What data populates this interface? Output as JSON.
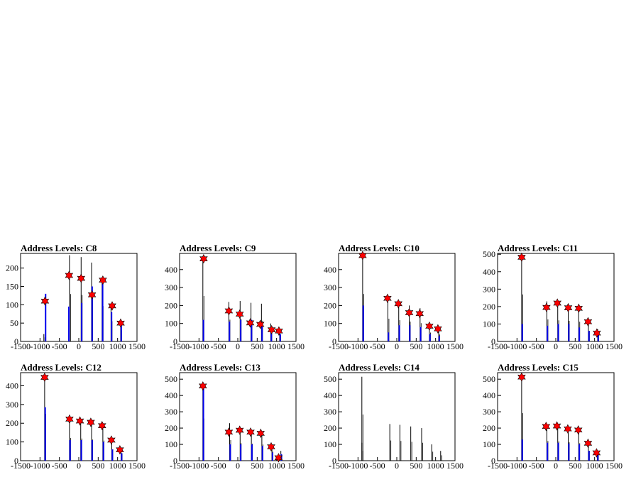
{
  "chart_data": [
    {
      "type": "histogram",
      "title": "Address Levels: C8",
      "xlim": [
        -1500,
        1500
      ],
      "ylim": [
        0,
        240
      ],
      "yticks": [
        0,
        50,
        100,
        150,
        200
      ],
      "xticks": [
        -1500,
        -1000,
        -500,
        0,
        500,
        1000,
        1500
      ],
      "black_spikes": [
        [
          -900,
          20
        ],
        [
          -240,
          235
        ],
        [
          60,
          230
        ],
        [
          330,
          215
        ],
        [
          600,
          175
        ],
        [
          830,
          100
        ],
        [
          1080,
          55
        ]
      ],
      "blue_spikes": [
        [
          -870,
          130
        ],
        [
          -270,
          95
        ],
        [
          60,
          105
        ],
        [
          330,
          150
        ],
        [
          600,
          170
        ],
        [
          830,
          80
        ],
        [
          1080,
          45
        ]
      ],
      "markers": [
        [
          -870,
          110
        ],
        [
          -250,
          180
        ],
        [
          60,
          172
        ],
        [
          340,
          127
        ],
        [
          620,
          167
        ],
        [
          860,
          97
        ],
        [
          1080,
          50
        ]
      ]
    },
    {
      "type": "histogram",
      "title": "Address Levels: C9",
      "xlim": [
        -1500,
        1500
      ],
      "ylim": [
        0,
        490
      ],
      "yticks": [
        0,
        100,
        200,
        300,
        400
      ],
      "xticks": [
        -1500,
        -1000,
        -500,
        0,
        500,
        1000,
        1500
      ],
      "black_spikes": [
        [
          -900,
          460
        ],
        [
          -230,
          220
        ],
        [
          60,
          225
        ],
        [
          340,
          215
        ],
        [
          610,
          210
        ],
        [
          850,
          100
        ],
        [
          1080,
          60
        ]
      ],
      "blue_spikes": [
        [
          -900,
          120
        ],
        [
          -230,
          110
        ],
        [
          60,
          120
        ],
        [
          340,
          120
        ],
        [
          610,
          100
        ],
        [
          850,
          50
        ],
        [
          1080,
          40
        ]
      ],
      "markers": [
        [
          -880,
          460
        ],
        [
          -230,
          170
        ],
        [
          50,
          152
        ],
        [
          320,
          103
        ],
        [
          580,
          95
        ],
        [
          870,
          65
        ],
        [
          1060,
          58
        ]
      ]
    },
    {
      "type": "histogram",
      "title": "Address Levels: C10",
      "xlim": [
        -1500,
        1500
      ],
      "ylim": [
        0,
        490
      ],
      "yticks": [
        0,
        100,
        200,
        300,
        400
      ],
      "xticks": [
        -1500,
        -1000,
        -500,
        0,
        500,
        1000,
        1500
      ],
      "black_spikes": [
        [
          -880,
          480
        ],
        [
          -230,
          230
        ],
        [
          50,
          215
        ],
        [
          320,
          200
        ],
        [
          600,
          185
        ],
        [
          840,
          90
        ],
        [
          1080,
          70
        ]
      ],
      "blue_spikes": [
        [
          -880,
          200
        ],
        [
          -230,
          50
        ],
        [
          50,
          90
        ],
        [
          320,
          90
        ],
        [
          600,
          80
        ],
        [
          840,
          40
        ],
        [
          1080,
          30
        ]
      ],
      "markers": [
        [
          -880,
          478
        ],
        [
          -240,
          240
        ],
        [
          40,
          210
        ],
        [
          320,
          160
        ],
        [
          590,
          155
        ],
        [
          840,
          85
        ],
        [
          1060,
          70
        ]
      ]
    },
    {
      "type": "histogram",
      "title": "Address Levels: C11",
      "xlim": [
        -1500,
        1500
      ],
      "ylim": [
        0,
        505
      ],
      "yticks": [
        0,
        100,
        200,
        300,
        400,
        500
      ],
      "xticks": [
        -1500,
        -1000,
        -500,
        0,
        500,
        1000,
        1500
      ],
      "black_spikes": [
        [
          -880,
          490
        ],
        [
          -230,
          230
        ],
        [
          50,
          220
        ],
        [
          320,
          215
        ],
        [
          590,
          205
        ],
        [
          840,
          110
        ],
        [
          1080,
          70
        ]
      ],
      "blue_spikes": [
        [
          -880,
          100
        ],
        [
          -230,
          90
        ],
        [
          50,
          100
        ],
        [
          320,
          100
        ],
        [
          590,
          80
        ],
        [
          840,
          60
        ],
        [
          1080,
          40
        ]
      ],
      "markers": [
        [
          -880,
          483
        ],
        [
          -240,
          195
        ],
        [
          40,
          220
        ],
        [
          320,
          193
        ],
        [
          590,
          190
        ],
        [
          830,
          113
        ],
        [
          1060,
          48
        ]
      ]
    },
    {
      "type": "histogram",
      "title": "Address Levels: C12",
      "xlim": [
        -1500,
        1500
      ],
      "ylim": [
        0,
        470
      ],
      "yticks": [
        0,
        100,
        200,
        300,
        400
      ],
      "xticks": [
        -1500,
        -1000,
        -500,
        0,
        500,
        1000,
        1500
      ],
      "black_spikes": [
        [
          -880,
          455
        ],
        [
          -240,
          220
        ],
        [
          50,
          215
        ],
        [
          330,
          205
        ],
        [
          620,
          195
        ],
        [
          850,
          110
        ],
        [
          1090,
          70
        ]
      ],
      "blue_spikes": [
        [
          -880,
          285
        ],
        [
          -240,
          110
        ],
        [
          50,
          110
        ],
        [
          330,
          110
        ],
        [
          620,
          100
        ],
        [
          850,
          60
        ],
        [
          1090,
          40
        ]
      ],
      "markers": [
        [
          -880,
          445
        ],
        [
          -240,
          222
        ],
        [
          30,
          212
        ],
        [
          310,
          205
        ],
        [
          600,
          187
        ],
        [
          840,
          110
        ],
        [
          1060,
          58
        ]
      ]
    },
    {
      "type": "histogram",
      "title": "Address Levels: C13",
      "xlim": [
        -1500,
        1500
      ],
      "ylim": [
        0,
        540
      ],
      "yticks": [
        0,
        100,
        200,
        300,
        400,
        500
      ],
      "xticks": [
        -1500,
        -1000,
        -500,
        0,
        500,
        1000,
        1500
      ],
      "black_spikes": [
        [
          -900,
          470
        ],
        [
          -210,
          230
        ],
        [
          60,
          195
        ],
        [
          350,
          190
        ],
        [
          620,
          180
        ],
        [
          880,
          100
        ],
        [
          1110,
          60
        ]
      ],
      "blue_spikes": [
        [
          -900,
          460
        ],
        [
          -210,
          100
        ],
        [
          60,
          100
        ],
        [
          350,
          100
        ],
        [
          620,
          90
        ],
        [
          880,
          50
        ],
        [
          1110,
          40
        ]
      ],
      "markers": [
        [
          -900,
          458
        ],
        [
          -230,
          175
        ],
        [
          50,
          187
        ],
        [
          330,
          175
        ],
        [
          590,
          168
        ],
        [
          860,
          85
        ],
        [
          1050,
          18
        ]
      ]
    },
    {
      "type": "histogram",
      "title": "Address Levels: C14",
      "xlim": [
        -1500,
        1500
      ],
      "ylim": [
        0,
        540
      ],
      "yticks": [
        0,
        100,
        200,
        300,
        400,
        500
      ],
      "xticks": [
        -1500,
        -1000,
        -500,
        0,
        500,
        1000,
        1500
      ],
      "black_spikes": [
        [
          -900,
          515
        ],
        [
          -900,
          110
        ],
        [
          -180,
          225
        ],
        [
          80,
          220
        ],
        [
          360,
          210
        ],
        [
          640,
          200
        ],
        [
          900,
          100
        ],
        [
          1130,
          60
        ]
      ],
      "blue_spikes": [],
      "markers": []
    },
    {
      "type": "histogram",
      "title": "Address Levels: C15",
      "xlim": [
        -1500,
        1500
      ],
      "ylim": [
        0,
        540
      ],
      "yticks": [
        0,
        100,
        200,
        300,
        400,
        500
      ],
      "xticks": [
        -1500,
        -1000,
        -500,
        0,
        500,
        1000,
        1500
      ],
      "black_spikes": [
        [
          -880,
          530
        ],
        [
          -230,
          220
        ],
        [
          50,
          215
        ],
        [
          320,
          205
        ],
        [
          590,
          195
        ],
        [
          840,
          110
        ],
        [
          1070,
          60
        ]
      ],
      "blue_spikes": [
        [
          -880,
          130
        ],
        [
          -230,
          110
        ],
        [
          50,
          110
        ],
        [
          320,
          105
        ],
        [
          590,
          100
        ],
        [
          840,
          60
        ],
        [
          1070,
          40
        ]
      ],
      "markers": [
        [
          -880,
          513
        ],
        [
          -250,
          210
        ],
        [
          30,
          213
        ],
        [
          310,
          195
        ],
        [
          580,
          188
        ],
        [
          830,
          107
        ],
        [
          1050,
          48
        ]
      ]
    }
  ]
}
